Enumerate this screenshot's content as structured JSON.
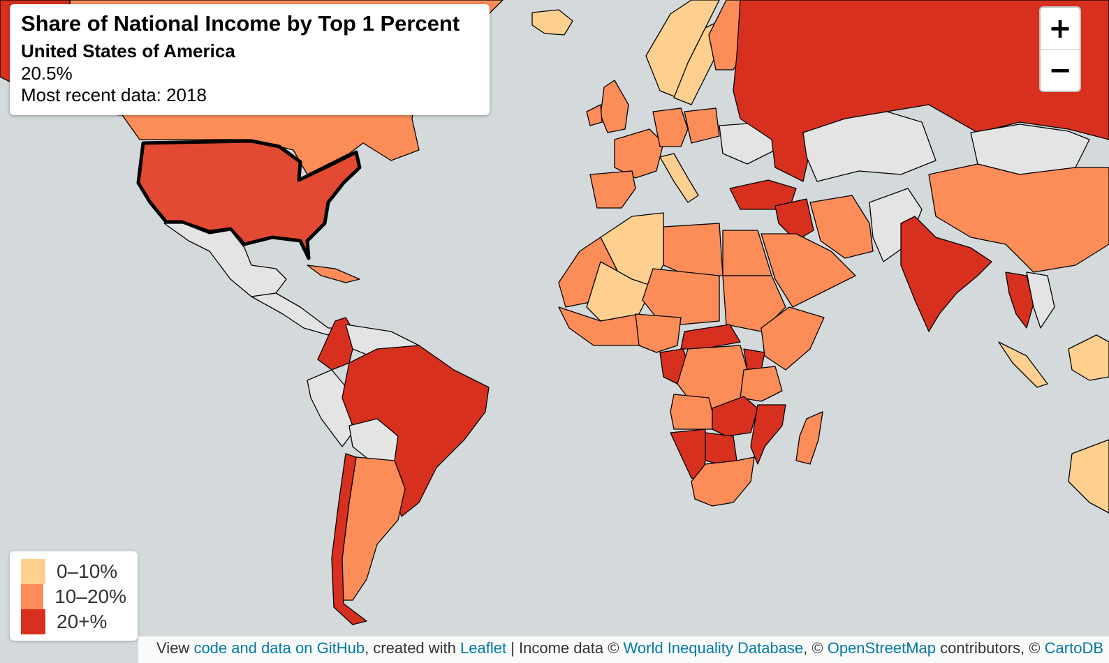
{
  "info": {
    "title": "Share of National Income by Top 1 Percent",
    "country": "United States of America",
    "value": "20.5%",
    "recent": "Most recent data: 2018"
  },
  "zoom": {
    "in": "+",
    "out": "−"
  },
  "legend": {
    "items": [
      {
        "label": "0–10%",
        "color": "#fdd090"
      },
      {
        "label": "10–20%",
        "color": "#fc8d59"
      },
      {
        "label": "20+%",
        "color": "#d7301f"
      }
    ]
  },
  "attribution": {
    "t1": "View ",
    "l1": "code and data on GitHub",
    "t2": ", created with ",
    "l2": "Leaflet",
    "t3": " | Income data © ",
    "l3": "World Inequality Database",
    "t4": ", © ",
    "l4": "OpenStreetMap",
    "t5": " contributors, © ",
    "l5": "CartoDB"
  },
  "colors": {
    "ocean": "#d4dadc",
    "no_data": "#e4e4e4",
    "low": "#fdd090",
    "mid": "#fc8d59",
    "high": "#d7301f",
    "highlight": "#e34a33"
  }
}
